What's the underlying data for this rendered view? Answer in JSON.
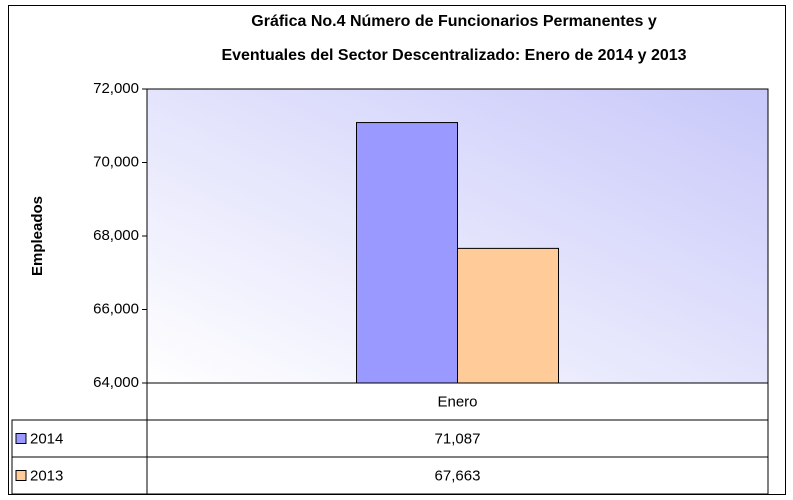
{
  "chart_data": {
    "type": "bar",
    "title": [
      "Gráfica No.4 Número de Funcionarios Permanentes y",
      "Eventuales del Sector Descentralizado: Enero de 2014 y 2013"
    ],
    "ylabel": "Empleados",
    "categories": [
      "Enero"
    ],
    "series": [
      {
        "name": "2014",
        "color": "#9999ff",
        "values": [
          71087
        ],
        "value_labels": [
          "71,087"
        ]
      },
      {
        "name": "2013",
        "color": "#ffcc99",
        "values": [
          67663
        ],
        "value_labels": [
          "67,663"
        ]
      }
    ],
    "ylim": [
      64000,
      72000
    ],
    "yticks": [
      {
        "value": 64000,
        "label": "64,000"
      },
      {
        "value": 66000,
        "label": "66,000"
      },
      {
        "value": 68000,
        "label": "68,000"
      },
      {
        "value": 70000,
        "label": "70,000"
      },
      {
        "value": 72000,
        "label": "72,000"
      }
    ],
    "grid": false,
    "data_table": true
  }
}
